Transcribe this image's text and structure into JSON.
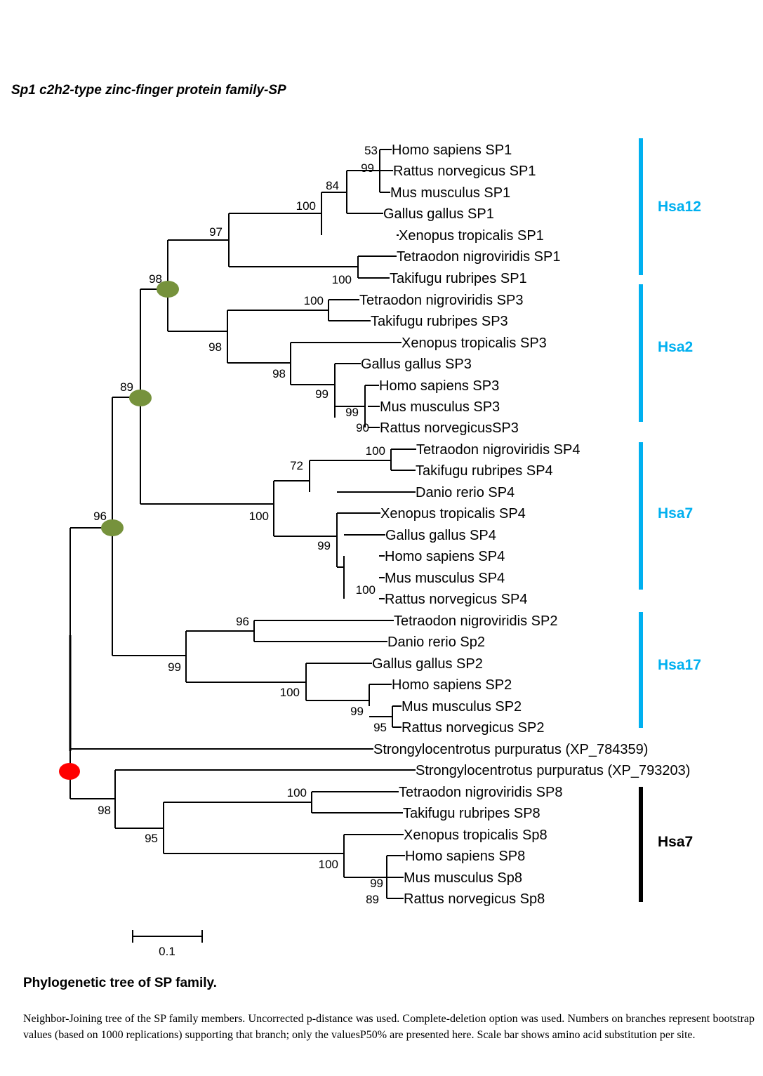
{
  "header": {
    "title": "Sp1 c2h2-type zinc-finger protein family-SP"
  },
  "tree": {
    "leaves": [
      "Homo sapiens  SP1",
      "Rattus norvegicus SP1",
      "Mus musculus  SP1",
      "Gallus gallus SP1",
      "Xenopus tropicalis  SP1",
      "Tetraodon nigroviridis SP1",
      "Takifugu rubripes  SP1",
      "Tetraodon nigroviridis SP3",
      "Takifugu rubripes  SP3",
      "Xenopus tropicalis  SP3",
      "Gallus gallus SP3",
      "Homo sapiens  SP3",
      "Mus musculus  SP3",
      "Rattus norvegicusSP3",
      "Tetraodon nigroviridis SP4",
      "Takifugu rubripes  SP4",
      "Danio rerio  SP4",
      "Xenopus tropicalis  SP4",
      "Gallus gallus SP4",
      "Homo sapiens  SP4",
      "Mus musculus  SP4",
      "Rattus norvegicus SP4",
      "Tetraodon nigroviridis SP2",
      "Danio rerio  Sp2",
      "Gallus gallus SP2",
      "Homo sapiens  SP2",
      "Mus musculus  SP2",
      "Rattus norvegicus SP2",
      "Strongylocentrotus purpuratus (XP_784359)",
      "Strongylocentrotus purpuratus (XP_793203)",
      "Tetraodon nigroviridis SP8",
      "Takifugu rubripes  SP8",
      "Xenopus tropicalis  Sp8",
      "Homo sapiens  SP8",
      "Mus musculus  Sp8",
      "Rattus norvegicus Sp8"
    ],
    "bootstrap": [
      "53",
      "99",
      "84",
      "100",
      "97",
      "100",
      "98",
      "100",
      "98",
      "98",
      "99",
      "99",
      "90",
      "89",
      "100",
      "72",
      "100",
      "99",
      "100",
      "96",
      "96",
      "99",
      "100",
      "99",
      "95",
      "98",
      "100",
      "95",
      "100",
      "99",
      "89"
    ],
    "groups": [
      {
        "label": "Hsa12",
        "color": "#00b0f0"
      },
      {
        "label": "Hsa2",
        "color": "#00b0f0"
      },
      {
        "label": "Hsa7",
        "color": "#00b0f0"
      },
      {
        "label": "Hsa17",
        "color": "#00b0f0"
      },
      {
        "label": "Hsa7",
        "color": "#000000"
      }
    ],
    "marker_colors": {
      "duplication": "#76923c",
      "root": "#ff0000"
    },
    "scale_bar": {
      "label": "0.1"
    }
  },
  "caption": {
    "title": "Phylogenetic tree of SP family.",
    "text": "Neighbor-Joining tree of the SP family members. Uncorrected p-distance was used. Complete-deletion option was used. Numbers on branches represent bootstrap values (based on 1000 replications) supporting that branch; only the valuesP50% are presented here. Scale bar shows amino acid substitution per site."
  }
}
